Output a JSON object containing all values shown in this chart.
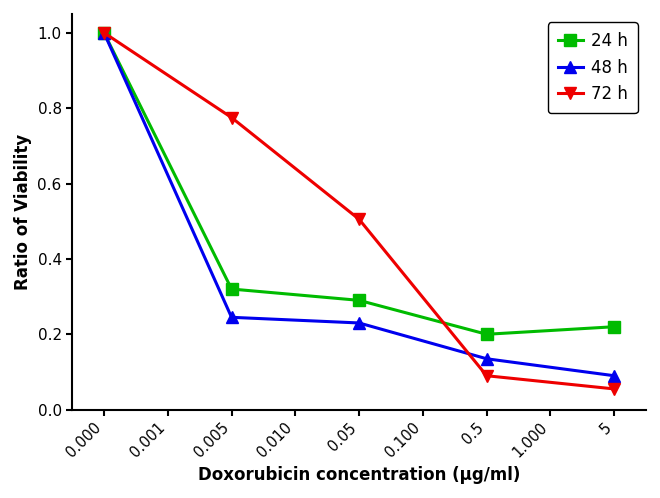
{
  "x_indices": [
    0,
    1,
    2,
    3,
    4,
    5,
    6,
    7,
    8
  ],
  "data_x_indices": [
    0,
    2,
    4,
    6,
    8
  ],
  "series": {
    "24h": {
      "y": [
        1.0,
        0.32,
        0.29,
        0.2,
        0.22
      ],
      "color": "#00BB00",
      "marker": "s",
      "label": "24 h"
    },
    "48h": {
      "y": [
        1.0,
        0.245,
        0.23,
        0.135,
        0.09
      ],
      "color": "#0000EE",
      "marker": "^",
      "label": "48 h"
    },
    "72h": {
      "y": [
        1.0,
        0.775,
        0.505,
        0.09,
        0.055
      ],
      "color": "#EE0000",
      "marker": "v",
      "label": "72 h"
    }
  },
  "xlabel": "Doxorubicin concentration (μg/ml)",
  "ylabel": "Ratio of Viability",
  "xlim": [
    -0.5,
    8.5
  ],
  "ylim": [
    0.0,
    1.05
  ],
  "yticks": [
    0.0,
    0.2,
    0.4,
    0.6,
    0.8,
    1.0
  ],
  "xtick_labels": [
    "0.000",
    "0.001",
    "0.005",
    "0.010",
    "0.05",
    "0.100",
    "0.5",
    "1.000",
    "5"
  ],
  "background_color": "#ffffff",
  "linewidth": 2.2,
  "markersize": 9
}
